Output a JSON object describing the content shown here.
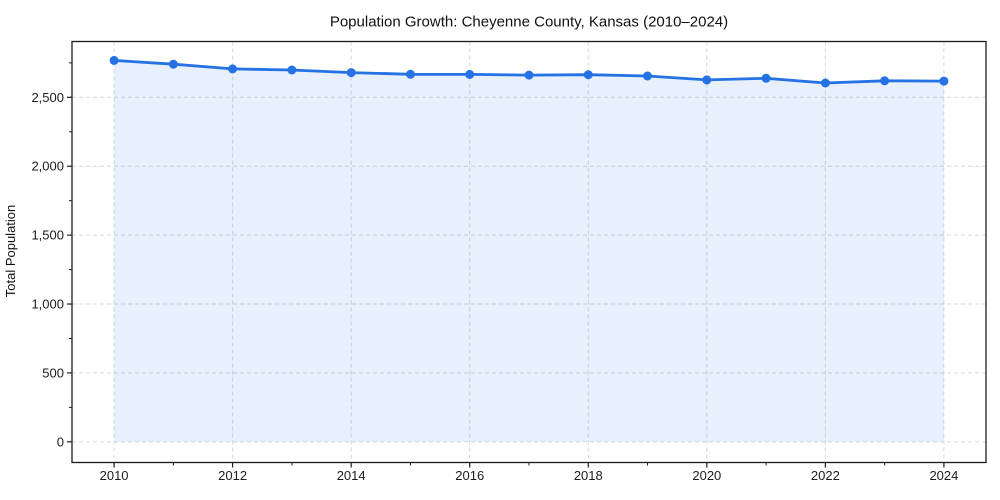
{
  "chart_data": {
    "type": "line",
    "title": "Population Growth: Cheyenne County, Kansas (2010–2024)",
    "xlabel": "",
    "ylabel": "Total Population",
    "x": [
      2010,
      2011,
      2012,
      2013,
      2014,
      2015,
      2016,
      2017,
      2018,
      2019,
      2020,
      2021,
      2022,
      2023,
      2024
    ],
    "series": [
      {
        "name": "Total Population",
        "values": [
          2768,
          2740,
          2706,
          2698,
          2679,
          2667,
          2666,
          2661,
          2664,
          2655,
          2626,
          2638,
          2604,
          2620,
          2618
        ]
      }
    ],
    "x_ticks": [
      {
        "value": 2010,
        "label": "2010"
      },
      {
        "value": 2012,
        "label": "2012"
      },
      {
        "value": 2014,
        "label": "2014"
      },
      {
        "value": 2016,
        "label": "2016"
      },
      {
        "value": 2018,
        "label": "2018"
      },
      {
        "value": 2020,
        "label": "2020"
      },
      {
        "value": 2022,
        "label": "2022"
      },
      {
        "value": 2024,
        "label": "2024"
      }
    ],
    "x_minor_ticks": [
      2011,
      2013,
      2015,
      2017,
      2019,
      2021,
      2023
    ],
    "y_ticks": [
      {
        "value": 0,
        "label": "0"
      },
      {
        "value": 500,
        "label": "500"
      },
      {
        "value": 1000,
        "label": "1,000"
      },
      {
        "value": 1500,
        "label": "1,500"
      },
      {
        "value": 2000,
        "label": "2,000"
      },
      {
        "value": 2500,
        "label": "2,500"
      }
    ],
    "y_minor_ticks": [
      250,
      750,
      1250,
      1750,
      2250,
      2750
    ],
    "xlim": [
      2009.29,
      2024.71
    ],
    "ylim": [
      -150,
      2905
    ],
    "grid": "dashed-major",
    "legend": "none",
    "marker": "circle",
    "area_fill": true,
    "colors": {
      "line": "#2472e4",
      "marker": "#2472e4",
      "area_fill": "#2472e4",
      "area_fill_opacity": 0.11,
      "grid": "#d8d8d8",
      "spine": "#1c1c1c",
      "text": "#111111",
      "background": "#ffffff"
    }
  }
}
